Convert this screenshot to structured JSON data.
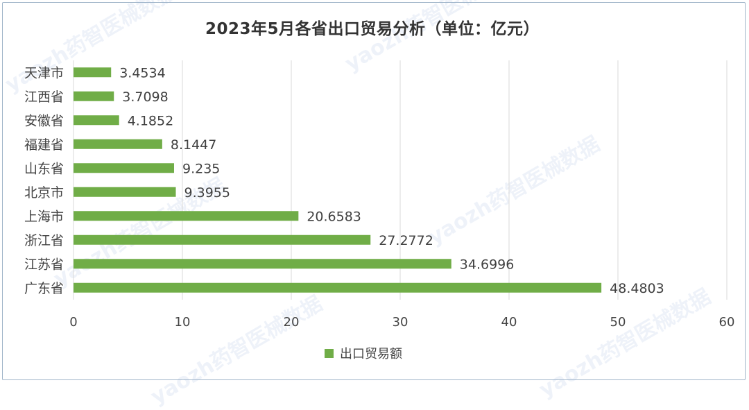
{
  "colors": {
    "bar": "#70ad47",
    "grid": "#d9d9d9",
    "axis_text": "#444444",
    "label_text": "#404040",
    "watermark": "#b4c6e4"
  },
  "watermark": "yaozh药智医械数据",
  "chart_data": {
    "type": "bar",
    "orientation": "horizontal",
    "title": "2023年5月各省出口贸易分析（单位：亿元）",
    "categories": [
      "天津市",
      "江西省",
      "安徽省",
      "福建省",
      "山东省",
      "北京市",
      "上海市",
      "浙江省",
      "江苏省",
      "广东省"
    ],
    "series": [
      {
        "name": "出口贸易额",
        "values": [
          3.4534,
          3.7098,
          4.1852,
          8.1447,
          9.235,
          9.3955,
          20.6583,
          27.2772,
          34.6996,
          48.4803
        ],
        "labels": [
          "3.4534",
          "3.7098",
          "4.1852",
          "8.1447",
          "9.235",
          "9.3955",
          "20.6583",
          "27.2772",
          "34.6996",
          "48.4803"
        ]
      }
    ],
    "xlim": [
      0,
      60
    ],
    "xticks": [
      0,
      10,
      20,
      30,
      40,
      50,
      60
    ],
    "xtick_labels": [
      "0",
      "10",
      "20",
      "30",
      "40",
      "50",
      "60"
    ],
    "grid": "vertical",
    "legend": "bottom"
  }
}
